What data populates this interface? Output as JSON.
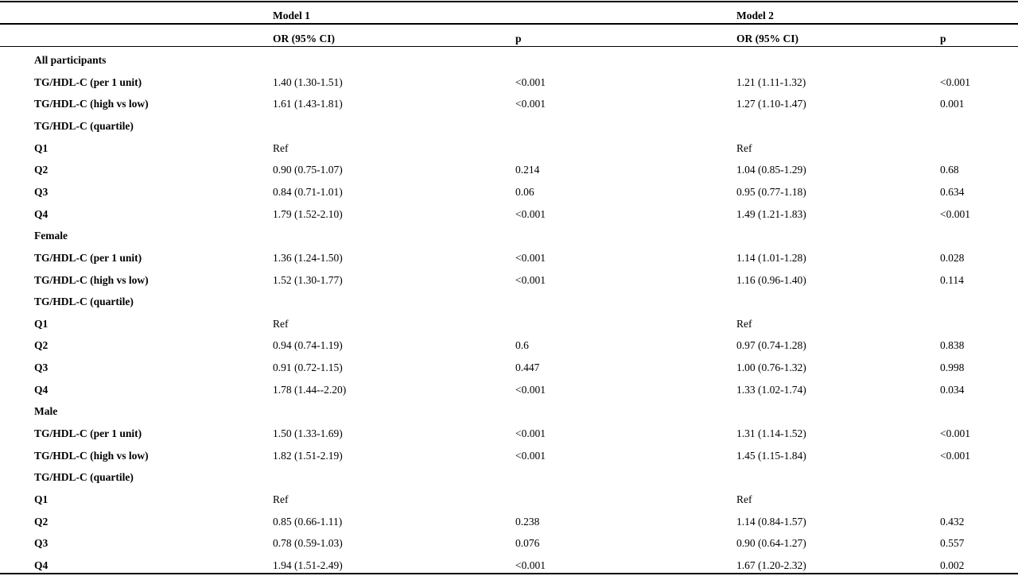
{
  "table": {
    "models": [
      "Model 1",
      "Model 2"
    ],
    "columns": [
      "OR (95% CI)",
      "p",
      "OR (95% CI)",
      "p"
    ],
    "rows": [
      {
        "label": "All participants"
      },
      {
        "label": "TG/HDL-C (per 1 unit)",
        "m1_or": "1.40 (1.30-1.51)",
        "m1_p": "<0.001",
        "m2_or": "1.21 (1.11-1.32)",
        "m2_p": "<0.001"
      },
      {
        "label": "TG/HDL-C (high vs low)",
        "m1_or": "1.61 (1.43-1.81)",
        "m1_p": "<0.001",
        "m2_or": "1.27 (1.10-1.47)",
        "m2_p": "0.001"
      },
      {
        "label": "TG/HDL-C (quartile)"
      },
      {
        "label": "Q1",
        "m1_or": "Ref",
        "m2_or": "Ref"
      },
      {
        "label": "Q2",
        "m1_or": "0.90 (0.75-1.07)",
        "m1_p": "0.214",
        "m2_or": "1.04 (0.85-1.29)",
        "m2_p": "0.68"
      },
      {
        "label": "Q3",
        "m1_or": "0.84 (0.71-1.01)",
        "m1_p": "0.06",
        "m2_or": "0.95 (0.77-1.18)",
        "m2_p": "0.634"
      },
      {
        "label": "Q4",
        "m1_or": "1.79 (1.52-2.10)",
        "m1_p": "<0.001",
        "m2_or": "1.49 (1.21-1.83)",
        "m2_p": "<0.001"
      },
      {
        "label": "Female"
      },
      {
        "label": "TG/HDL-C (per 1 unit)",
        "m1_or": "1.36 (1.24-1.50)",
        "m1_p": "<0.001",
        "m2_or": "1.14 (1.01-1.28)",
        "m2_p": "0.028"
      },
      {
        "label": "TG/HDL-C (high vs low)",
        "m1_or": "1.52 (1.30-1.77)",
        "m1_p": "<0.001",
        "m2_or": "1.16 (0.96-1.40)",
        "m2_p": "0.114"
      },
      {
        "label": "TG/HDL-C (quartile)"
      },
      {
        "label": "Q1",
        "m1_or": "Ref",
        "m2_or": "Ref"
      },
      {
        "label": "Q2",
        "m1_or": "0.94 (0.74-1.19)",
        "m1_p": "0.6",
        "m2_or": "0.97 (0.74-1.28)",
        "m2_p": "0.838"
      },
      {
        "label": "Q3",
        "m1_or": "0.91 (0.72-1.15)",
        "m1_p": "0.447",
        "m2_or": "1.00 (0.76-1.32)",
        "m2_p": "0.998"
      },
      {
        "label": "Q4",
        "m1_or": "1.78 (1.44--2.20)",
        "m1_p": "<0.001",
        "m2_or": "1.33 (1.02-1.74)",
        "m2_p": "0.034"
      },
      {
        "label": "Male"
      },
      {
        "label": "TG/HDL-C (per 1 unit)",
        "m1_or": "1.50 (1.33-1.69)",
        "m1_p": "<0.001",
        "m2_or": "1.31 (1.14-1.52)",
        "m2_p": "<0.001"
      },
      {
        "label": "TG/HDL-C (high vs low)",
        "m1_or": "1.82 (1.51-2.19)",
        "m1_p": "<0.001",
        "m2_or": "1.45 (1.15-1.84)",
        "m2_p": "<0.001"
      },
      {
        "label": "TG/HDL-C (quartile)"
      },
      {
        "label": "Q1",
        "m1_or": "Ref",
        "m2_or": "Ref"
      },
      {
        "label": "Q2",
        "m1_or": "0.85 (0.66-1.11)",
        "m1_p": "0.238",
        "m2_or": "1.14 (0.84-1.57)",
        "m2_p": "0.432"
      },
      {
        "label": "Q3",
        "m1_or": "0.78 (0.59-1.03)",
        "m1_p": "0.076",
        "m2_or": "0.90 (0.64-1.27)",
        "m2_p": "0.557"
      },
      {
        "label": "Q4",
        "m1_or": "1.94 (1.51-2.49)",
        "m1_p": "<0.001",
        "m2_or": "1.67 (1.20-2.32)",
        "m2_p": "0.002"
      }
    ]
  }
}
